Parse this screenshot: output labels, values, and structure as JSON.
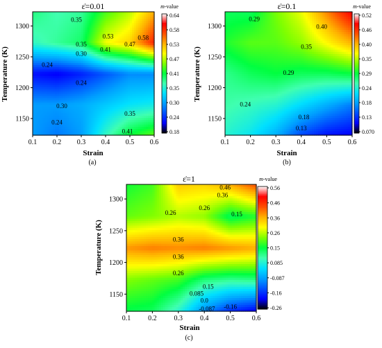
{
  "figure": {
    "colors": {
      "axis": "#000000",
      "contour": "#333333"
    },
    "colormap": [
      "#000000",
      "#0000ff",
      "#0050ff",
      "#00a0ff",
      "#00e0ff",
      "#40ffb0",
      "#00ff40",
      "#80ff00",
      "#ffff00",
      "#ffb000",
      "#ff5000",
      "#ff0000",
      "#ffffff"
    ],
    "colorbar_title_prefix": "m",
    "colorbar_title_suffix": "-value"
  },
  "chart_data": [
    {
      "type": "heatmap",
      "panel_label": "(a)",
      "title": "ε̇=0.01",
      "xlabel": "Strain",
      "ylabel": "Temperature (K)",
      "xlim": [
        0.1,
        0.6
      ],
      "ylim": [
        1123,
        1323
      ],
      "x_ticks": [
        "0.1",
        "0.2",
        "0.3",
        "0.4",
        "0.5",
        "0.6"
      ],
      "y_ticks": [
        "1150",
        "1200",
        "1250",
        "1300"
      ],
      "x_tick_values": [
        0.1,
        0.2,
        0.3,
        0.4,
        0.5,
        0.6
      ],
      "y_tick_values": [
        1150,
        1200,
        1250,
        1300
      ],
      "colorbar_ticks": [
        "0.64",
        "0.58",
        "0.53",
        "0.47",
        "0.41",
        "0.35",
        "0.30",
        "0.24",
        "0.18"
      ],
      "colorbar_range": [
        0.18,
        0.64
      ],
      "x": [
        0.1,
        0.2,
        0.3,
        0.4,
        0.5,
        0.6
      ],
      "y": [
        1123,
        1173,
        1223,
        1273,
        1323
      ],
      "z": [
        [
          0.28,
          0.26,
          0.28,
          0.36,
          0.42,
          0.45
        ],
        [
          0.28,
          0.28,
          0.29,
          0.31,
          0.33,
          0.34
        ],
        [
          0.2,
          0.19,
          0.21,
          0.24,
          0.27,
          0.27
        ],
        [
          0.36,
          0.38,
          0.4,
          0.5,
          0.53,
          0.62
        ],
        [
          0.39,
          0.37,
          0.38,
          0.44,
          0.48,
          0.55
        ]
      ],
      "contour_labels": [
        {
          "text": "0.35",
          "x": 0.28,
          "y": 1310
        },
        {
          "text": "0.53",
          "x": 0.41,
          "y": 1283
        },
        {
          "text": "0.58",
          "x": 0.555,
          "y": 1281
        },
        {
          "text": "0.47",
          "x": 0.5,
          "y": 1270
        },
        {
          "text": "0.35",
          "x": 0.3,
          "y": 1270
        },
        {
          "text": "0.41",
          "x": 0.4,
          "y": 1262
        },
        {
          "text": "0.30",
          "x": 0.3,
          "y": 1255
        },
        {
          "text": "0.24",
          "x": 0.16,
          "y": 1237
        },
        {
          "text": "0.24",
          "x": 0.3,
          "y": 1208
        },
        {
          "text": "0.30",
          "x": 0.22,
          "y": 1170
        },
        {
          "text": "0.35",
          "x": 0.5,
          "y": 1158
        },
        {
          "text": "0.24",
          "x": 0.2,
          "y": 1144
        },
        {
          "text": "0.41",
          "x": 0.49,
          "y": 1129
        }
      ]
    },
    {
      "type": "heatmap",
      "panel_label": "(b)",
      "title": "ε̇=0.1",
      "xlabel": "Strain",
      "ylabel": "Temperature (K)",
      "xlim": [
        0.1,
        0.6
      ],
      "ylim": [
        1123,
        1323
      ],
      "x_ticks": [
        "0.1",
        "0.2",
        "0.3",
        "0.4",
        "0.5",
        "0.6"
      ],
      "y_ticks": [
        "1150",
        "1200",
        "1250",
        "1300"
      ],
      "x_tick_values": [
        0.1,
        0.2,
        0.3,
        0.4,
        0.5,
        0.6
      ],
      "y_tick_values": [
        1150,
        1200,
        1250,
        1300
      ],
      "colorbar_ticks": [
        "0.52",
        "0.46",
        "0.40",
        "0.35",
        "0.29",
        "0.24",
        "0.18",
        "0.13",
        "0.070"
      ],
      "colorbar_range": [
        0.07,
        0.52
      ],
      "x": [
        0.1,
        0.2,
        0.3,
        0.4,
        0.5,
        0.6
      ],
      "y": [
        1123,
        1173,
        1223,
        1273,
        1323
      ],
      "z": [
        [
          0.24,
          0.22,
          0.18,
          0.12,
          0.09,
          0.08
        ],
        [
          0.26,
          0.25,
          0.24,
          0.21,
          0.18,
          0.15
        ],
        [
          0.27,
          0.29,
          0.3,
          0.29,
          0.29,
          0.3
        ],
        [
          0.31,
          0.33,
          0.33,
          0.35,
          0.39,
          0.43
        ],
        [
          0.29,
          0.29,
          0.34,
          0.38,
          0.45,
          0.52
        ]
      ],
      "contour_labels": [
        {
          "text": "0.29",
          "x": 0.215,
          "y": 1311
        },
        {
          "text": "0.40",
          "x": 0.48,
          "y": 1299
        },
        {
          "text": "0.35",
          "x": 0.42,
          "y": 1266
        },
        {
          "text": "0.29",
          "x": 0.35,
          "y": 1224
        },
        {
          "text": "0.24",
          "x": 0.18,
          "y": 1173
        },
        {
          "text": "0.18",
          "x": 0.41,
          "y": 1152
        },
        {
          "text": "0.13",
          "x": 0.4,
          "y": 1134
        }
      ]
    },
    {
      "type": "heatmap",
      "panel_label": "(c)",
      "title": "ε̇=1",
      "xlabel": "Strain",
      "ylabel": "Temperature (K)",
      "xlim": [
        0.1,
        0.6
      ],
      "ylim": [
        1123,
        1323
      ],
      "x_ticks": [
        "0.1",
        "0.2",
        "0.3",
        "0.4",
        "0.5",
        "0.6"
      ],
      "y_ticks": [
        "1150",
        "1200",
        "1250",
        "1300"
      ],
      "x_tick_values": [
        0.1,
        0.2,
        0.3,
        0.4,
        0.5,
        0.6
      ],
      "y_tick_values": [
        1150,
        1200,
        1250,
        1300
      ],
      "colorbar_ticks": [
        "0.56",
        "0.46",
        "0.36",
        "0.26",
        "0.15",
        "0.085",
        "-0.087",
        "-0.16",
        "-0.26"
      ],
      "colorbar_range": [
        -0.26,
        0.56
      ],
      "x": [
        0.1,
        0.2,
        0.3,
        0.4,
        0.5,
        0.6
      ],
      "y": [
        1123,
        1173,
        1223,
        1273,
        1323
      ],
      "z": [
        [
          0.15,
          0.14,
          0.05,
          -0.1,
          -0.2,
          -0.25
        ],
        [
          0.24,
          0.22,
          0.2,
          0.12,
          0.1,
          0.11
        ],
        [
          0.42,
          0.44,
          0.43,
          0.44,
          0.42,
          0.4
        ],
        [
          0.22,
          0.24,
          0.27,
          0.25,
          0.14,
          0.18
        ],
        [
          0.17,
          0.2,
          0.37,
          0.36,
          0.4,
          0.48
        ]
      ],
      "contour_labels": [
        {
          "text": "0.46",
          "x": 0.48,
          "y": 1318
        },
        {
          "text": "0.36",
          "x": 0.47,
          "y": 1306
        },
        {
          "text": "0.26",
          "x": 0.4,
          "y": 1286
        },
        {
          "text": "0.26",
          "x": 0.27,
          "y": 1278
        },
        {
          "text": "0.15",
          "x": 0.525,
          "y": 1276
        },
        {
          "text": "0.36",
          "x": 0.3,
          "y": 1236
        },
        {
          "text": "0.36",
          "x": 0.3,
          "y": 1209
        },
        {
          "text": "0.26",
          "x": 0.3,
          "y": 1183
        },
        {
          "text": "0.15",
          "x": 0.415,
          "y": 1162
        },
        {
          "text": "0.085",
          "x": 0.37,
          "y": 1151
        },
        {
          "text": "0.0",
          "x": 0.4,
          "y": 1140
        },
        {
          "text": "-0.087",
          "x": 0.41,
          "y": 1127
        },
        {
          "text": "-0.16",
          "x": 0.5,
          "y": 1130
        }
      ]
    }
  ]
}
